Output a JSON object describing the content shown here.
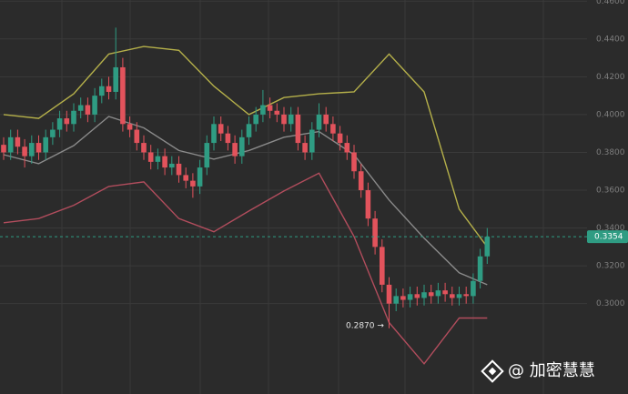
{
  "chart_data": {
    "type": "candlestick",
    "up_color": "#2f9c83",
    "down_color": "#e2535c",
    "grid": true,
    "ylim": [
      0.2522,
      0.4606
    ],
    "yticks": [
      {
        "value": 0.46,
        "label": "0.4600"
      },
      {
        "value": 0.44,
        "label": "0.4400"
      },
      {
        "value": 0.42,
        "label": "0.4200"
      },
      {
        "value": 0.4,
        "label": "0.4000"
      },
      {
        "value": 0.38,
        "label": "0.3800"
      },
      {
        "value": 0.36,
        "label": "0.3600"
      },
      {
        "value": 0.34,
        "label": "0.3400"
      },
      {
        "value": 0.32,
        "label": "0.3200"
      },
      {
        "value": 0.3,
        "label": "0.3000"
      }
    ],
    "open": [
      0.384,
      0.38,
      0.388,
      0.383,
      0.378,
      0.385,
      0.38,
      0.388,
      0.392,
      0.398,
      0.395,
      0.402,
      0.405,
      0.4,
      0.41,
      0.415,
      0.412,
      0.425,
      0.395,
      0.392,
      0.385,
      0.38,
      0.375,
      0.378,
      0.372,
      0.374,
      0.368,
      0.365,
      0.362,
      0.372,
      0.385,
      0.395,
      0.39,
      0.385,
      0.378,
      0.388,
      0.395,
      0.4,
      0.405,
      0.402,
      0.4,
      0.395,
      0.4,
      0.385,
      0.38,
      0.392,
      0.4,
      0.395,
      0.39,
      0.385,
      0.38,
      0.37,
      0.36,
      0.345,
      0.33,
      0.31,
      0.3,
      0.304,
      0.302,
      0.305,
      0.303,
      0.306,
      0.304,
      0.307,
      0.305,
      0.303,
      0.305,
      0.304,
      0.312,
      0.325
    ],
    "high": [
      0.388,
      0.392,
      0.392,
      0.387,
      0.389,
      0.389,
      0.392,
      0.396,
      0.402,
      0.402,
      0.406,
      0.409,
      0.409,
      0.414,
      0.419,
      0.42,
      0.446,
      0.43,
      0.399,
      0.396,
      0.389,
      0.384,
      0.382,
      0.382,
      0.378,
      0.378,
      0.372,
      0.369,
      0.376,
      0.389,
      0.399,
      0.399,
      0.394,
      0.389,
      0.392,
      0.399,
      0.404,
      0.413,
      0.409,
      0.406,
      0.404,
      0.404,
      0.404,
      0.389,
      0.396,
      0.406,
      0.404,
      0.399,
      0.394,
      0.389,
      0.384,
      0.374,
      0.364,
      0.349,
      0.334,
      0.314,
      0.308,
      0.308,
      0.309,
      0.309,
      0.31,
      0.31,
      0.311,
      0.311,
      0.309,
      0.309,
      0.309,
      0.316,
      0.329,
      0.34
    ],
    "low": [
      0.376,
      0.376,
      0.379,
      0.372,
      0.374,
      0.376,
      0.376,
      0.384,
      0.388,
      0.391,
      0.391,
      0.398,
      0.396,
      0.396,
      0.406,
      0.408,
      0.408,
      0.391,
      0.388,
      0.381,
      0.376,
      0.371,
      0.371,
      0.368,
      0.368,
      0.364,
      0.361,
      0.356,
      0.358,
      0.368,
      0.381,
      0.386,
      0.381,
      0.374,
      0.374,
      0.384,
      0.391,
      0.396,
      0.398,
      0.396,
      0.391,
      0.391,
      0.381,
      0.376,
      0.376,
      0.388,
      0.391,
      0.386,
      0.381,
      0.376,
      0.366,
      0.356,
      0.341,
      0.326,
      0.306,
      0.287,
      0.296,
      0.298,
      0.298,
      0.299,
      0.299,
      0.3,
      0.3,
      0.301,
      0.299,
      0.299,
      0.3,
      0.3,
      0.308,
      0.321
    ],
    "close": [
      0.38,
      0.388,
      0.383,
      0.378,
      0.385,
      0.38,
      0.388,
      0.392,
      0.398,
      0.395,
      0.402,
      0.405,
      0.4,
      0.41,
      0.415,
      0.412,
      0.425,
      0.395,
      0.392,
      0.385,
      0.38,
      0.375,
      0.378,
      0.372,
      0.374,
      0.368,
      0.365,
      0.362,
      0.372,
      0.385,
      0.395,
      0.39,
      0.385,
      0.378,
      0.388,
      0.395,
      0.4,
      0.405,
      0.402,
      0.4,
      0.395,
      0.4,
      0.385,
      0.38,
      0.392,
      0.4,
      0.395,
      0.39,
      0.385,
      0.38,
      0.37,
      0.36,
      0.345,
      0.33,
      0.31,
      0.3,
      0.304,
      0.302,
      0.305,
      0.303,
      0.306,
      0.304,
      0.307,
      0.305,
      0.303,
      0.305,
      0.304,
      0.312,
      0.325,
      0.3354
    ],
    "overlay": {
      "type": "line",
      "x": [
        0,
        5,
        10,
        15,
        20,
        25,
        30,
        35,
        40,
        45,
        50,
        55,
        60,
        65,
        69
      ],
      "series": [
        {
          "color": "#b5b04a",
          "values": [
            0.4,
            0.398,
            0.411,
            0.432,
            0.436,
            0.434,
            0.415,
            0.4,
            0.409,
            0.411,
            0.412,
            0.432,
            0.412,
            0.35,
            0.33
          ]
        },
        {
          "color": "#8a8a8a",
          "values": [
            0.3788,
            0.374,
            0.3836,
            0.399,
            0.393,
            0.381,
            0.3764,
            0.381,
            0.388,
            0.391,
            0.3788,
            0.3548,
            0.3346,
            0.3163,
            0.31
          ]
        },
        {
          "color": "#b24d5d",
          "values": [
            0.3428,
            0.345,
            0.352,
            0.362,
            0.3644,
            0.345,
            0.338,
            0.349,
            0.3596,
            0.369,
            0.3355,
            0.29,
            0.2682,
            0.2924,
            0.2924
          ]
        }
      ]
    },
    "annotation": "0.2870 →",
    "watermark": "@ 加密慧慧"
  }
}
